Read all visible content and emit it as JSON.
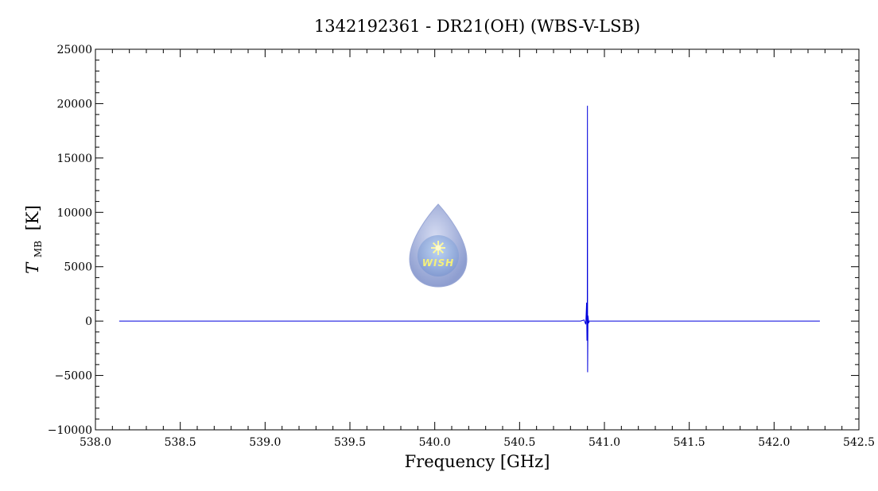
{
  "chart_data": {
    "type": "line",
    "title": "1342192361 - DR21(OH) (WBS-V-LSB)",
    "xlabel": "Frequency [GHz]",
    "ylabel_main": "T",
    "ylabel_sub": "MB",
    "ylabel_unit": "[K]",
    "xlim": [
      538.0,
      542.5
    ],
    "ylim": [
      -10000,
      25000
    ],
    "xticks": [
      "538.0",
      "538.5",
      "539.0",
      "539.5",
      "540.0",
      "540.5",
      "541.0",
      "541.5",
      "542.0",
      "542.5"
    ],
    "yticks": [
      "25000",
      "20000",
      "15000",
      "10000",
      "5000",
      "0",
      "−5000",
      "−10000"
    ],
    "grid": false,
    "series": [
      {
        "color": "#0000dd",
        "x": [
          538.14,
          540.86,
          540.88,
          540.89,
          540.895,
          540.897,
          540.899,
          540.9,
          540.901,
          540.903,
          540.905,
          540.907,
          540.91,
          540.92,
          542.27
        ],
        "y": [
          0,
          0,
          100,
          -300,
          1700,
          -1800,
          300,
          19800,
          -4700,
          500,
          200,
          -200,
          0,
          0,
          0
        ]
      }
    ],
    "logo_text": "WISH"
  }
}
